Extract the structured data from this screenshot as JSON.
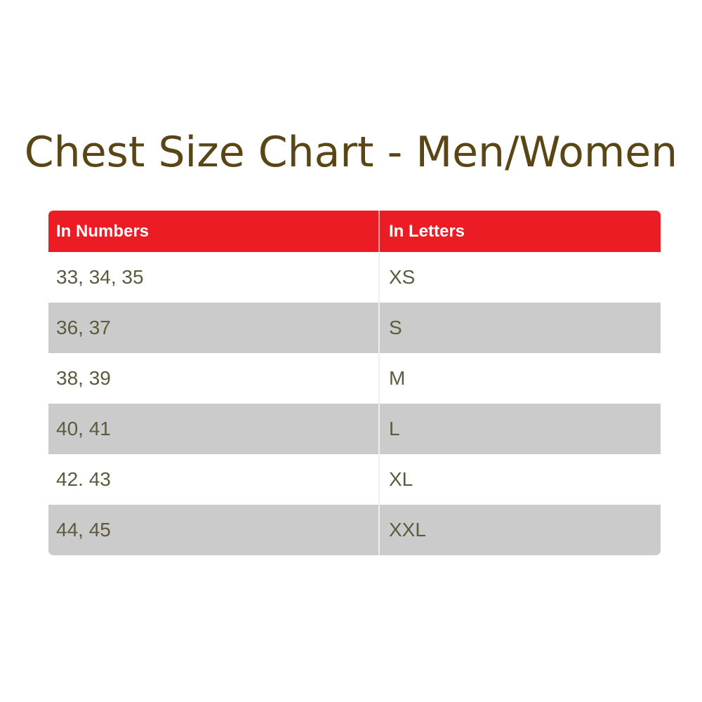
{
  "title": "Chest Size Chart - Men/Women",
  "table": {
    "headers": [
      "In Numbers",
      "In Letters"
    ],
    "rows": [
      [
        "33, 34, 35",
        "XS"
      ],
      [
        "36, 37",
        "S"
      ],
      [
        "38, 39",
        "M"
      ],
      [
        "40, 41",
        "L"
      ],
      [
        "42. 43",
        "XL"
      ],
      [
        "44, 45",
        "XXL"
      ]
    ]
  },
  "colors": {
    "header": "#ec1c24",
    "alt_row": "#cbcbcb",
    "title": "#5a4515",
    "text": "#5e5a3e"
  }
}
